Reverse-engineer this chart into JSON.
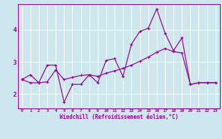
{
  "title": "",
  "xlabel": "Windchill (Refroidissement éolien,°C)",
  "background_color": "#cce8ee",
  "grid_color": "#ffffff",
  "line_color": "#990099",
  "x_ticks": [
    0,
    1,
    2,
    3,
    4,
    5,
    6,
    7,
    8,
    9,
    10,
    11,
    12,
    13,
    14,
    15,
    16,
    17,
    18,
    19,
    20,
    21,
    22,
    23
  ],
  "y_ticks": [
    2,
    3,
    4
  ],
  "ylim": [
    1.55,
    4.8
  ],
  "xlim": [
    -0.5,
    23.5
  ],
  "series1_x": [
    0,
    1,
    2,
    3,
    4,
    5,
    6,
    7,
    8,
    9,
    10,
    11,
    12,
    13,
    14,
    15,
    16,
    17,
    18,
    19,
    20,
    21,
    22,
    23
  ],
  "series1_y": [
    2.45,
    2.6,
    2.35,
    2.9,
    2.9,
    1.75,
    2.3,
    2.3,
    2.6,
    2.35,
    3.05,
    3.1,
    2.55,
    3.55,
    3.95,
    4.05,
    4.65,
    3.9,
    3.35,
    3.75,
    2.3,
    2.35,
    2.35,
    2.35
  ],
  "series2_x": [
    0,
    1,
    2,
    3,
    4,
    5,
    6,
    7,
    8,
    9,
    10,
    11,
    12,
    13,
    14,
    15,
    16,
    17,
    18,
    19,
    20,
    21,
    22,
    23
  ],
  "series2_y": [
    2.45,
    2.35,
    2.35,
    2.38,
    2.75,
    2.45,
    2.52,
    2.58,
    2.6,
    2.55,
    2.65,
    2.72,
    2.8,
    2.9,
    3.02,
    3.15,
    3.3,
    3.42,
    3.32,
    3.28,
    2.3,
    2.35,
    2.35,
    2.35
  ]
}
